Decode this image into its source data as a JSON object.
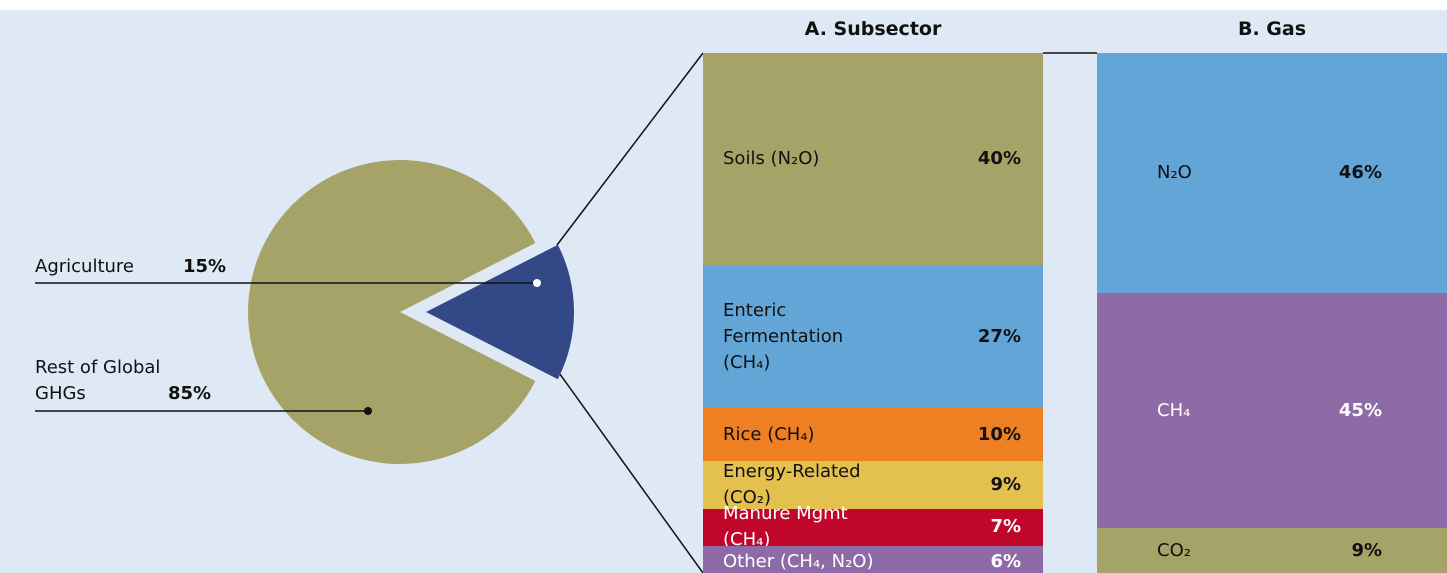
{
  "chart_data": [
    {
      "type": "pie",
      "labels": [
        "Agriculture",
        "Rest of Global GHGs"
      ],
      "values": [
        15,
        85
      ],
      "value_labels": [
        "15%",
        "85%"
      ],
      "colors": [
        "#334886",
        "#a6a368"
      ],
      "explode": [
        true,
        false
      ]
    },
    {
      "type": "stacked-bar",
      "title": "A. Subsector",
      "categories": [
        "Soils (N₂O)",
        "Enteric Fermentation (CH₄)",
        "Rice (CH₄)",
        "Energy-Related (CO₂)",
        "Manure Mgmt (CH₄)",
        "Other (CH₄, N₂O)"
      ],
      "values": [
        40,
        27,
        10,
        9,
        7,
        6
      ],
      "value_labels": [
        "40%",
        "27%",
        "10%",
        "9%",
        "7%",
        "6%"
      ],
      "colors": [
        "#a6a368",
        "#64a5d8",
        "#ee7f22",
        "#e4c04f",
        "#c0072a",
        "#8e6aa6"
      ]
    },
    {
      "type": "stacked-bar",
      "title": "B. Gas",
      "categories": [
        "N₂O",
        "CH₄",
        "CO₂"
      ],
      "values": [
        46,
        45,
        9
      ],
      "value_labels": [
        "46%",
        "45%",
        "9%"
      ],
      "colors": [
        "#64a5d8",
        "#8e6aa6",
        "#a6a368"
      ]
    }
  ]
}
